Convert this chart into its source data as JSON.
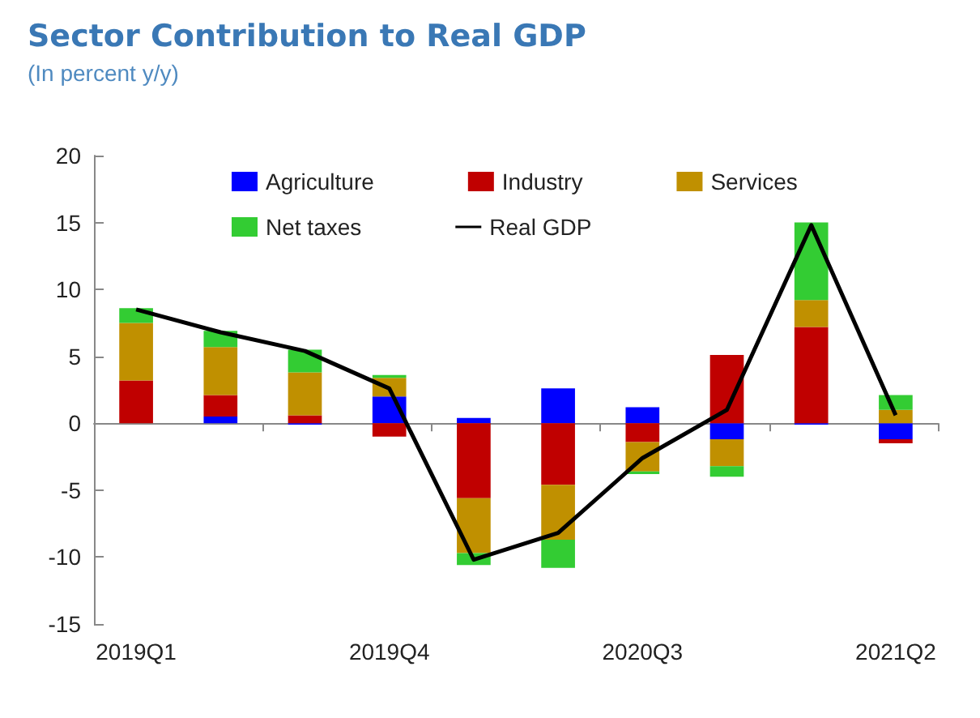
{
  "chart_data": {
    "type": "bar",
    "title": "Sector Contribution to Real GDP",
    "subtitle": "(In percent y/y)",
    "stacked": true,
    "categories": [
      "2019Q1",
      null,
      null,
      "2019Q4",
      null,
      null,
      "2020Q3",
      null,
      null,
      "2021Q2"
    ],
    "series": [
      {
        "name": "Agriculture",
        "color": "#0000ff",
        "values": [
          0,
          0.5,
          -0.1,
          2.0,
          0.4,
          2.6,
          1.2,
          -1.2,
          -0.1,
          -1.2
        ]
      },
      {
        "name": "Industry",
        "color": "#c00000",
        "values": [
          3.2,
          1.6,
          0.6,
          -1.0,
          -5.6,
          -4.6,
          -1.4,
          5.1,
          7.2,
          -0.3
        ]
      },
      {
        "name": "Services",
        "color": "#c09000",
        "values": [
          4.3,
          3.6,
          3.2,
          1.4,
          -4.1,
          -4.1,
          -2.2,
          -2.0,
          2.0,
          1.0
        ]
      },
      {
        "name": "Net taxes",
        "color": "#33cc33",
        "values": [
          1.1,
          1.2,
          1.7,
          0.2,
          -0.9,
          -2.1,
          -0.2,
          -0.8,
          5.8,
          1.1
        ]
      },
      {
        "name": "Real GDP",
        "type": "line",
        "color": "#000000",
        "marker": "none",
        "line_style": "solid",
        "values": [
          8.5,
          6.8,
          5.4,
          2.6,
          -10.2,
          -8.2,
          -2.6,
          1.0,
          14.8,
          0.6
        ]
      }
    ],
    "ylim": [
      -15,
      20
    ],
    "yticks": [
      -15,
      -10,
      -5,
      0,
      5,
      10,
      15,
      20
    ],
    "legend": "top"
  }
}
